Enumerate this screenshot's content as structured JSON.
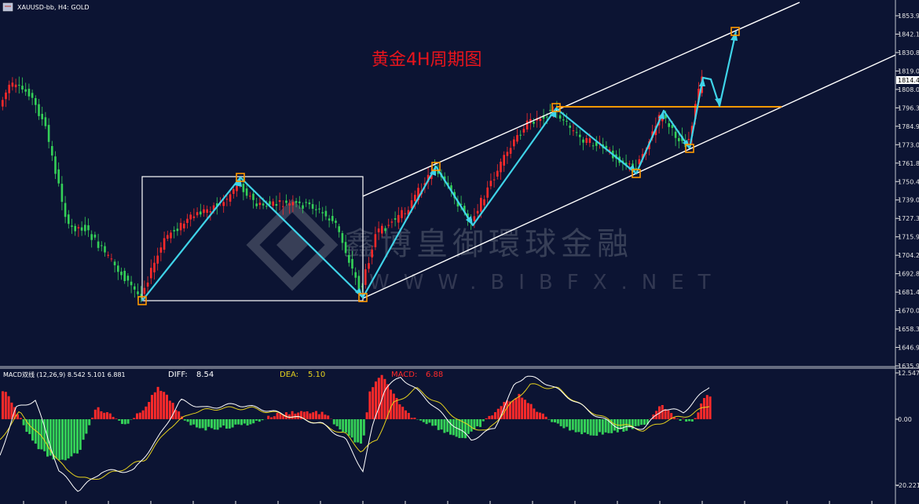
{
  "header": {
    "symbol": "XAUUSD-bb, H4:  GOLD"
  },
  "title": "黄金4H周期图",
  "current_price": "1814.46",
  "price_ticks": [
    "1853.90",
    "1842.15",
    "1830.80",
    "1819.05",
    "1808.00",
    "1796.30",
    "1784.90",
    "1773.05",
    "1761.80",
    "1750.40",
    "1739.05",
    "1727.30",
    "1715.90",
    "1704.20",
    "1692.80",
    "1681.40",
    "1670.00",
    "1658.30",
    "1646.90",
    "1635.90"
  ],
  "macd_panel": {
    "name": "MACD双线 (12,26,9) 8.542 5.101 6.881",
    "diff_label": "DIFF:",
    "diff_value": "8.54",
    "dea_label": "DEA:",
    "dea_value": "5.10",
    "macd_label": "MACD:",
    "macd_value": "6.88",
    "ticks": [
      "12.547",
      "0.00",
      "-20.221"
    ]
  },
  "watermark": {
    "chinese": "鑫博皇御環球金融",
    "english": "WWW.BIBFX.NET"
  },
  "colors": {
    "background": "#0c1433",
    "bull_candle": "#ff2a2a",
    "bear_candle": "#34d058",
    "arrow": "#3fd3e8",
    "channel": "#ffffff",
    "resistance": "#ff9800",
    "title": "#e8141c",
    "diff_line": "#ffffff",
    "dea_line": "#e6d21e"
  }
}
